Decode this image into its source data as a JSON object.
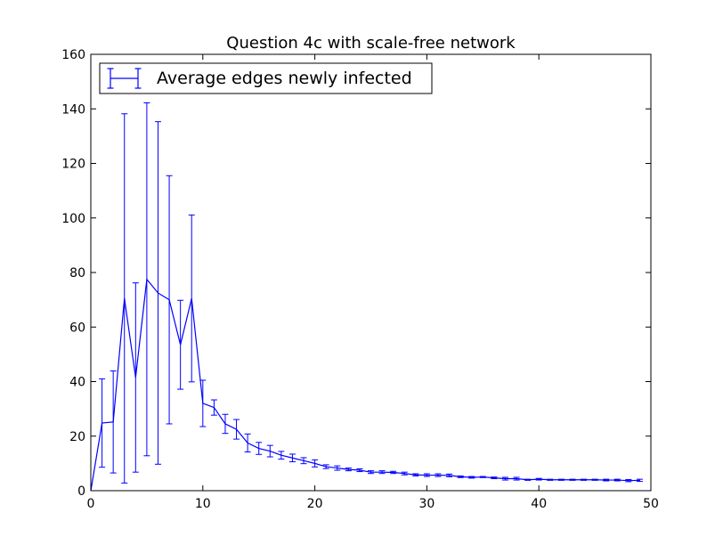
{
  "chart_data": {
    "type": "line",
    "title": "Question 4c with scale-free network",
    "xlabel": "",
    "ylabel": "",
    "xlim": [
      0,
      50
    ],
    "ylim": [
      0,
      160
    ],
    "x_ticks": [
      0,
      10,
      20,
      30,
      40,
      50
    ],
    "y_ticks": [
      0,
      20,
      40,
      60,
      80,
      100,
      120,
      140,
      160
    ],
    "grid": false,
    "legend_position": "top-left",
    "series": [
      {
        "name": "Average edges newly infected",
        "color": "#0000ff",
        "x": [
          0,
          1,
          2,
          3,
          4,
          5,
          6,
          7,
          8,
          9,
          10,
          11,
          12,
          13,
          14,
          15,
          16,
          17,
          18,
          19,
          20,
          21,
          22,
          23,
          24,
          25,
          26,
          27,
          28,
          29,
          30,
          31,
          32,
          33,
          34,
          35,
          36,
          37,
          38,
          39,
          40,
          41,
          42,
          43,
          44,
          45,
          46,
          47,
          48,
          49
        ],
        "y": [
          0,
          24.8,
          25.2,
          70.5,
          41.5,
          77.5,
          72.5,
          70,
          53.5,
          70.5,
          32,
          30.5,
          24.5,
          22.5,
          17.5,
          15.5,
          14.5,
          13,
          12,
          11,
          10,
          8.8,
          8.3,
          7.8,
          7.5,
          6.8,
          6.8,
          6.7,
          6.3,
          5.8,
          5.7,
          5.7,
          5.6,
          5.1,
          4.9,
          5.0,
          4.7,
          4.4,
          4.4,
          4.0,
          4.2,
          4.0,
          4.0,
          4.0,
          4.0,
          4.0,
          3.9,
          3.9,
          3.7,
          3.8
        ],
        "err": [
          0,
          16.2,
          18.7,
          67.7,
          34.7,
          64.7,
          62.8,
          45.5,
          16.3,
          30.6,
          8.5,
          2.8,
          3.5,
          3.6,
          3.3,
          2.2,
          2.1,
          1.4,
          1.4,
          1.1,
          1.3,
          0.7,
          0.8,
          0.5,
          0.5,
          0.5,
          0.5,
          0.4,
          0.5,
          0.4,
          0.5,
          0.5,
          0.5,
          0.3,
          0.3,
          0.2,
          0.3,
          0.5,
          0.5,
          0.2,
          0.3,
          0.2,
          0.2,
          0.2,
          0.2,
          0.2,
          0.3,
          0.3,
          0.4,
          0.4
        ]
      }
    ]
  }
}
